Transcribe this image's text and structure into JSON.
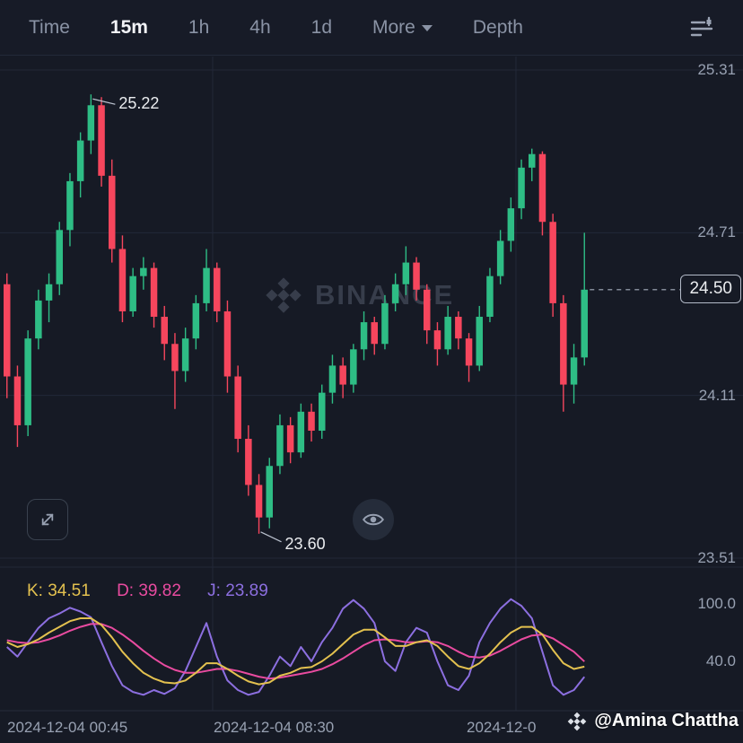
{
  "tabbar": {
    "items": [
      {
        "label": "Time"
      },
      {
        "label": "15m"
      },
      {
        "label": "1h"
      },
      {
        "label": "4h"
      },
      {
        "label": "1d"
      },
      {
        "label": "More"
      },
      {
        "label": "Depth"
      }
    ],
    "active": "15m"
  },
  "watermark": {
    "text": "BINANCE"
  },
  "credit": {
    "text": "@Amina Chattha"
  },
  "time_axis": [
    "2024-12-04 00:45",
    "2024-12-04 08:30",
    "2024-12-0"
  ],
  "chart_data": [
    {
      "type": "candlestick",
      "y_axis_ticks": [
        "25.31",
        "24.71",
        "24.11",
        "23.51"
      ],
      "current_price": "24.50",
      "annotations": {
        "high": "25.22",
        "low": "23.60"
      },
      "up_color": "#2EBD85",
      "down_color": "#F6465D",
      "candles": [
        [
          24.52,
          24.56,
          24.1,
          24.18
        ],
        [
          24.18,
          24.22,
          23.92,
          24.0
        ],
        [
          24.0,
          24.35,
          23.96,
          24.32
        ],
        [
          24.32,
          24.5,
          24.28,
          24.46
        ],
        [
          24.46,
          24.56,
          24.38,
          24.52
        ],
        [
          24.52,
          24.75,
          24.48,
          24.72
        ],
        [
          24.72,
          24.93,
          24.66,
          24.9
        ],
        [
          24.9,
          25.08,
          24.84,
          25.05
        ],
        [
          25.05,
          25.22,
          25.0,
          25.18
        ],
        [
          25.18,
          25.21,
          24.88,
          24.92
        ],
        [
          24.92,
          24.98,
          24.6,
          24.65
        ],
        [
          24.65,
          24.7,
          24.38,
          24.42
        ],
        [
          24.42,
          24.58,
          24.4,
          24.55
        ],
        [
          24.55,
          24.62,
          24.5,
          24.58
        ],
        [
          24.58,
          24.6,
          24.36,
          24.4
        ],
        [
          24.4,
          24.44,
          24.24,
          24.3
        ],
        [
          24.3,
          24.34,
          24.06,
          24.2
        ],
        [
          24.2,
          24.36,
          24.16,
          24.32
        ],
        [
          24.32,
          24.48,
          24.28,
          24.45
        ],
        [
          24.45,
          24.65,
          24.42,
          24.58
        ],
        [
          24.58,
          24.6,
          24.38,
          24.42
        ],
        [
          24.42,
          24.46,
          24.12,
          24.18
        ],
        [
          24.18,
          24.22,
          23.9,
          23.95
        ],
        [
          23.95,
          24.0,
          23.74,
          23.78
        ],
        [
          23.78,
          23.82,
          23.6,
          23.66
        ],
        [
          23.66,
          23.88,
          23.62,
          23.85
        ],
        [
          23.85,
          24.04,
          23.82,
          24.0
        ],
        [
          24.0,
          24.03,
          23.86,
          23.9
        ],
        [
          23.9,
          24.08,
          23.88,
          24.05
        ],
        [
          24.05,
          24.08,
          23.94,
          23.98
        ],
        [
          23.98,
          24.15,
          23.95,
          24.12
        ],
        [
          24.12,
          24.26,
          24.08,
          24.22
        ],
        [
          24.22,
          24.25,
          24.1,
          24.15
        ],
        [
          24.15,
          24.3,
          24.12,
          24.28
        ],
        [
          24.28,
          24.42,
          24.24,
          24.38
        ],
        [
          24.38,
          24.4,
          24.26,
          24.3
        ],
        [
          24.3,
          24.48,
          24.28,
          24.45
        ],
        [
          24.45,
          24.56,
          24.42,
          24.52
        ],
        [
          24.52,
          24.66,
          24.48,
          24.6
        ],
        [
          24.6,
          24.62,
          24.46,
          24.5
        ],
        [
          24.5,
          24.52,
          24.3,
          24.35
        ],
        [
          24.35,
          24.38,
          24.22,
          24.28
        ],
        [
          24.28,
          24.44,
          24.26,
          24.4
        ],
        [
          24.4,
          24.42,
          24.28,
          24.32
        ],
        [
          24.32,
          24.34,
          24.16,
          24.22
        ],
        [
          24.22,
          24.44,
          24.2,
          24.4
        ],
        [
          24.4,
          24.58,
          24.38,
          24.55
        ],
        [
          24.55,
          24.72,
          24.52,
          24.68
        ],
        [
          24.68,
          24.84,
          24.64,
          24.8
        ],
        [
          24.8,
          24.98,
          24.76,
          24.95
        ],
        [
          24.95,
          25.02,
          24.9,
          25.0
        ],
        [
          25.0,
          25.01,
          24.7,
          24.75
        ],
        [
          24.75,
          24.78,
          24.4,
          24.45
        ],
        [
          24.45,
          24.48,
          24.05,
          24.15
        ],
        [
          24.15,
          24.3,
          24.08,
          24.25
        ],
        [
          24.25,
          24.71,
          24.22,
          24.5
        ]
      ]
    },
    {
      "type": "line",
      "name": "KDJ",
      "y_axis_ticks": [
        "100.0",
        "40.0"
      ],
      "legend": [
        {
          "text": "K: 34.51",
          "color": "#E3C14F"
        },
        {
          "text": "D: 39.82",
          "color": "#E94BA0"
        },
        {
          "text": "J: 23.89",
          "color": "#8C6FE0"
        }
      ],
      "series": [
        {
          "name": "K",
          "color": "#E3C14F",
          "values": [
            60,
            55,
            58,
            63,
            70,
            76,
            82,
            85,
            85,
            78,
            65,
            50,
            38,
            28,
            22,
            18,
            17,
            20,
            28,
            38,
            38,
            32,
            25,
            19,
            16,
            18,
            25,
            28,
            33,
            34,
            40,
            48,
            58,
            68,
            73,
            73,
            65,
            56,
            56,
            60,
            62,
            56,
            45,
            35,
            32,
            38,
            48,
            60,
            70,
            76,
            76,
            68,
            52,
            38,
            32,
            34.51
          ]
        },
        {
          "name": "D",
          "color": "#E94BA0",
          "values": [
            62,
            60,
            59,
            60,
            63,
            67,
            72,
            76,
            79,
            79,
            75,
            68,
            60,
            51,
            43,
            36,
            31,
            28,
            28,
            30,
            32,
            32,
            30,
            27,
            24,
            22,
            23,
            25,
            27,
            29,
            32,
            37,
            43,
            50,
            57,
            62,
            63,
            62,
            60,
            60,
            61,
            60,
            56,
            50,
            45,
            44,
            46,
            51,
            57,
            63,
            67,
            68,
            64,
            57,
            50,
            39.82
          ]
        },
        {
          "name": "J",
          "color": "#8C6FE0",
          "values": [
            55,
            45,
            60,
            75,
            85,
            90,
            96,
            92,
            86,
            60,
            35,
            15,
            8,
            5,
            10,
            6,
            12,
            30,
            55,
            80,
            45,
            20,
            10,
            5,
            8,
            25,
            45,
            35,
            55,
            40,
            60,
            75,
            95,
            104,
            95,
            80,
            40,
            30,
            60,
            75,
            70,
            40,
            15,
            10,
            25,
            60,
            80,
            95,
            105,
            98,
            85,
            50,
            15,
            5,
            10,
            23.89
          ]
        }
      ]
    }
  ]
}
